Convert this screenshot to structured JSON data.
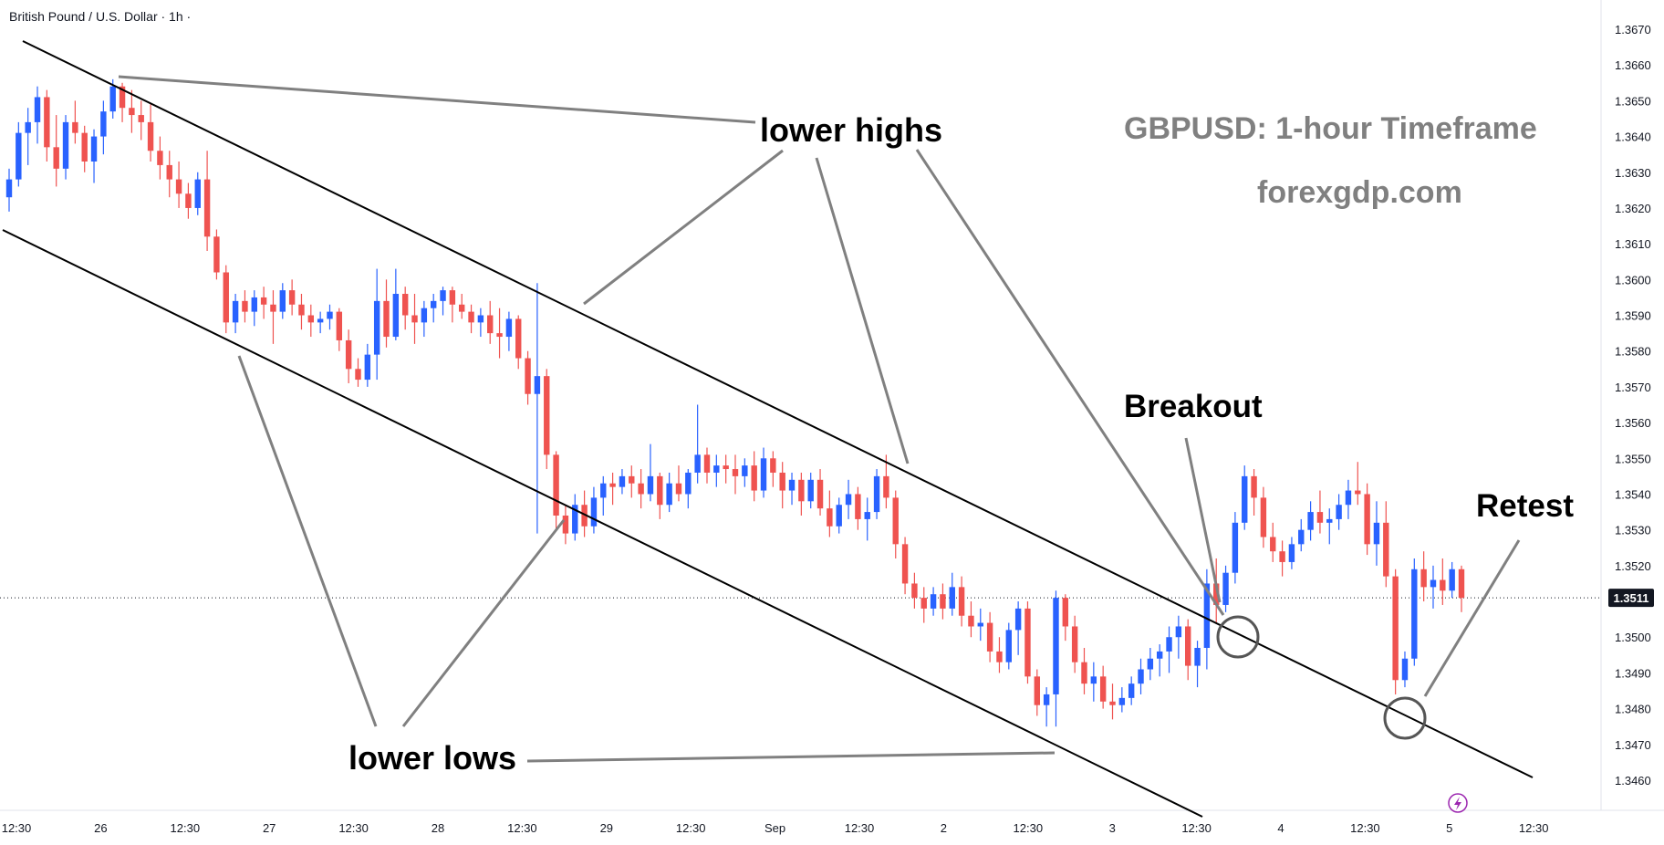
{
  "symbol_title": "British Pound / U.S. Dollar · 1h ·",
  "current_price_label": "1.3511",
  "colors": {
    "up": "#2962ff",
    "down": "#ef5350",
    "line": "#000000",
    "annotation_line": "#808080",
    "heading": "#808080",
    "price_tag": "#131722",
    "bolt": "#9c27b0"
  },
  "annotations": {
    "lower_highs": "lower highs",
    "lower_lows": "lower lows",
    "breakout": "Breakout",
    "retest": "Retest",
    "heading": "GBPUSD: 1-hour Timeframe",
    "site": "forexgdp.com"
  },
  "icons": {
    "event_marker": "lightning-icon"
  },
  "chart_data": {
    "type": "candlestick",
    "title": "British Pound / U.S. Dollar · 1h ·",
    "ylim": [
      1.3453,
      1.3676
    ],
    "y_ticks": [
      "1.3460",
      "1.3470",
      "1.3480",
      "1.3490",
      "1.3500",
      "1.3510",
      "1.3520",
      "1.3530",
      "1.3540",
      "1.3550",
      "1.3560",
      "1.3570",
      "1.3580",
      "1.3590",
      "1.3600",
      "1.3610",
      "1.3620",
      "1.3630",
      "1.3640",
      "1.3650",
      "1.3660",
      "1.3670"
    ],
    "x_ticks": [
      "12:30",
      "26",
      "12:30",
      "27",
      "12:30",
      "28",
      "12:30",
      "29",
      "12:30",
      "Sep",
      "12:30",
      "2",
      "12:30",
      "3",
      "12:30",
      "4",
      "12:30",
      "5",
      "12:30"
    ],
    "current_price": 1.3511,
    "candles_approx": [
      [
        1.3623,
        1.3631,
        1.3619,
        1.3628
      ],
      [
        1.3628,
        1.3644,
        1.3626,
        1.3641
      ],
      [
        1.3641,
        1.3648,
        1.3632,
        1.3644
      ],
      [
        1.3644,
        1.3654,
        1.3638,
        1.3651
      ],
      [
        1.3651,
        1.3653,
        1.3633,
        1.3637
      ],
      [
        1.3637,
        1.3646,
        1.3626,
        1.3631
      ],
      [
        1.3631,
        1.3646,
        1.3628,
        1.3644
      ],
      [
        1.3644,
        1.365,
        1.3638,
        1.3641
      ],
      [
        1.3641,
        1.3643,
        1.363,
        1.3633
      ],
      [
        1.3633,
        1.3642,
        1.3627,
        1.364
      ],
      [
        1.364,
        1.365,
        1.3635,
        1.3647
      ],
      [
        1.3647,
        1.3656,
        1.3645,
        1.3654
      ],
      [
        1.3654,
        1.3655,
        1.3644,
        1.3648
      ],
      [
        1.3648,
        1.3653,
        1.3641,
        1.3646
      ],
      [
        1.3646,
        1.365,
        1.3639,
        1.3644
      ],
      [
        1.3644,
        1.3649,
        1.3633,
        1.3636
      ],
      [
        1.3636,
        1.364,
        1.3628,
        1.3632
      ],
      [
        1.3632,
        1.3636,
        1.3623,
        1.3628
      ],
      [
        1.3628,
        1.3633,
        1.362,
        1.3624
      ],
      [
        1.3624,
        1.3627,
        1.3617,
        1.362
      ],
      [
        1.362,
        1.363,
        1.3618,
        1.3628
      ],
      [
        1.3628,
        1.3636,
        1.3608,
        1.3612
      ],
      [
        1.3612,
        1.3614,
        1.36,
        1.3602
      ],
      [
        1.3602,
        1.3604,
        1.3585,
        1.3588
      ],
      [
        1.3588,
        1.3596,
        1.3585,
        1.3594
      ],
      [
        1.3594,
        1.3597,
        1.3588,
        1.3591
      ],
      [
        1.3591,
        1.3597,
        1.3587,
        1.3595
      ],
      [
        1.3595,
        1.3598,
        1.3589,
        1.3593
      ],
      [
        1.3593,
        1.3597,
        1.3582,
        1.3591
      ],
      [
        1.3591,
        1.3599,
        1.3589,
        1.3597
      ],
      [
        1.3597,
        1.36,
        1.359,
        1.3593
      ],
      [
        1.3593,
        1.3596,
        1.3586,
        1.359
      ],
      [
        1.359,
        1.3593,
        1.3584,
        1.3588
      ],
      [
        1.3588,
        1.3591,
        1.3585,
        1.3589
      ],
      [
        1.3589,
        1.3593,
        1.3586,
        1.3591
      ],
      [
        1.3591,
        1.3592,
        1.358,
        1.3583
      ],
      [
        1.3583,
        1.3586,
        1.3571,
        1.3575
      ],
      [
        1.3575,
        1.3578,
        1.357,
        1.3572
      ],
      [
        1.3572,
        1.3582,
        1.357,
        1.3579
      ],
      [
        1.3579,
        1.3603,
        1.3572,
        1.3594
      ],
      [
        1.3594,
        1.36,
        1.3581,
        1.3584
      ],
      [
        1.3584,
        1.3603,
        1.3583,
        1.3596
      ],
      [
        1.3596,
        1.3598,
        1.3586,
        1.359
      ],
      [
        1.359,
        1.3596,
        1.3582,
        1.3588
      ],
      [
        1.3588,
        1.3594,
        1.3584,
        1.3592
      ],
      [
        1.3592,
        1.3596,
        1.3588,
        1.3594
      ],
      [
        1.3594,
        1.3598,
        1.359,
        1.3597
      ],
      [
        1.3597,
        1.3598,
        1.3588,
        1.3593
      ],
      [
        1.3593,
        1.3596,
        1.3589,
        1.3591
      ],
      [
        1.3591,
        1.3593,
        1.3585,
        1.3588
      ],
      [
        1.3588,
        1.3592,
        1.3584,
        1.359
      ],
      [
        1.359,
        1.3594,
        1.3582,
        1.3585
      ],
      [
        1.3585,
        1.3592,
        1.3578,
        1.3584
      ],
      [
        1.3584,
        1.3591,
        1.358,
        1.3589
      ],
      [
        1.3589,
        1.359,
        1.3575,
        1.3578
      ],
      [
        1.3578,
        1.358,
        1.3565,
        1.3568
      ],
      [
        1.3568,
        1.3599,
        1.3529,
        1.3573
      ],
      [
        1.3573,
        1.3575,
        1.3547,
        1.3551
      ],
      [
        1.3551,
        1.3552,
        1.353,
        1.3534
      ],
      [
        1.3534,
        1.3537,
        1.3526,
        1.3529
      ],
      [
        1.3529,
        1.354,
        1.3527,
        1.3537
      ],
      [
        1.3537,
        1.3541,
        1.3528,
        1.3531
      ],
      [
        1.3531,
        1.3542,
        1.3529,
        1.3539
      ],
      [
        1.3539,
        1.3545,
        1.3534,
        1.3543
      ],
      [
        1.3543,
        1.3546,
        1.3537,
        1.3542
      ],
      [
        1.3542,
        1.3547,
        1.354,
        1.3545
      ],
      [
        1.3545,
        1.3548,
        1.3539,
        1.3543
      ],
      [
        1.3543,
        1.3547,
        1.3536,
        1.354
      ],
      [
        1.354,
        1.3554,
        1.3538,
        1.3545
      ],
      [
        1.3545,
        1.3546,
        1.3533,
        1.3537
      ],
      [
        1.3537,
        1.3546,
        1.3535,
        1.3543
      ],
      [
        1.3543,
        1.3548,
        1.3538,
        1.354
      ],
      [
        1.354,
        1.3547,
        1.3536,
        1.3546
      ],
      [
        1.3546,
        1.3565,
        1.3543,
        1.3551
      ],
      [
        1.3551,
        1.3553,
        1.3543,
        1.3546
      ],
      [
        1.3546,
        1.3551,
        1.3542,
        1.3548
      ],
      [
        1.3548,
        1.3551,
        1.3543,
        1.3547
      ],
      [
        1.3547,
        1.3551,
        1.354,
        1.3545
      ],
      [
        1.3545,
        1.355,
        1.3542,
        1.3548
      ],
      [
        1.3548,
        1.3552,
        1.3538,
        1.3541
      ],
      [
        1.3541,
        1.3553,
        1.3539,
        1.355
      ],
      [
        1.355,
        1.3552,
        1.3542,
        1.3546
      ],
      [
        1.3546,
        1.3549,
        1.3536,
        1.3541
      ],
      [
        1.3541,
        1.3546,
        1.3537,
        1.3544
      ],
      [
        1.3544,
        1.3546,
        1.3534,
        1.3538
      ],
      [
        1.3538,
        1.3546,
        1.3536,
        1.3544
      ],
      [
        1.3544,
        1.3547,
        1.3534,
        1.3536
      ],
      [
        1.3536,
        1.3541,
        1.3528,
        1.3531
      ],
      [
        1.3531,
        1.3539,
        1.3529,
        1.3537
      ],
      [
        1.3537,
        1.3544,
        1.3533,
        1.354
      ],
      [
        1.354,
        1.3542,
        1.353,
        1.3533
      ],
      [
        1.3533,
        1.3539,
        1.3527,
        1.3535
      ],
      [
        1.3535,
        1.3547,
        1.3533,
        1.3545
      ],
      [
        1.3545,
        1.3551,
        1.3536,
        1.3539
      ],
      [
        1.3539,
        1.3541,
        1.3522,
        1.3526
      ],
      [
        1.3526,
        1.3528,
        1.3512,
        1.3515
      ],
      [
        1.3515,
        1.3518,
        1.3508,
        1.3511
      ],
      [
        1.3511,
        1.3514,
        1.3504,
        1.3508
      ],
      [
        1.3508,
        1.3514,
        1.3506,
        1.3512
      ],
      [
        1.3512,
        1.3515,
        1.3505,
        1.3508
      ],
      [
        1.3508,
        1.3518,
        1.3506,
        1.3514
      ],
      [
        1.3514,
        1.3517,
        1.3503,
        1.3506
      ],
      [
        1.3506,
        1.351,
        1.35,
        1.3503
      ],
      [
        1.3503,
        1.3508,
        1.3499,
        1.3504
      ],
      [
        1.3504,
        1.3507,
        1.3493,
        1.3496
      ],
      [
        1.3496,
        1.35,
        1.349,
        1.3493
      ],
      [
        1.3493,
        1.3504,
        1.3491,
        1.3502
      ],
      [
        1.3502,
        1.351,
        1.3495,
        1.3508
      ],
      [
        1.3508,
        1.351,
        1.3487,
        1.3489
      ],
      [
        1.3489,
        1.3491,
        1.3478,
        1.3481
      ],
      [
        1.3481,
        1.3486,
        1.3475,
        1.3484
      ],
      [
        1.3484,
        1.3513,
        1.3475,
        1.3511
      ],
      [
        1.3511,
        1.3512,
        1.3499,
        1.3503
      ],
      [
        1.3503,
        1.3506,
        1.349,
        1.3493
      ],
      [
        1.3493,
        1.3497,
        1.3484,
        1.3487
      ],
      [
        1.3487,
        1.3493,
        1.3482,
        1.3489
      ],
      [
        1.3489,
        1.3492,
        1.348,
        1.3482
      ],
      [
        1.3482,
        1.3487,
        1.3477,
        1.3481
      ],
      [
        1.3481,
        1.3486,
        1.3479,
        1.3483
      ],
      [
        1.3483,
        1.3489,
        1.3481,
        1.3487
      ],
      [
        1.3487,
        1.3494,
        1.3484,
        1.3491
      ],
      [
        1.3491,
        1.3497,
        1.3488,
        1.3494
      ],
      [
        1.3494,
        1.3498,
        1.3489,
        1.3496
      ],
      [
        1.3496,
        1.3503,
        1.349,
        1.35
      ],
      [
        1.35,
        1.3506,
        1.3494,
        1.3503
      ],
      [
        1.3503,
        1.3505,
        1.3488,
        1.3492
      ],
      [
        1.3492,
        1.3499,
        1.3486,
        1.3497
      ],
      [
        1.3497,
        1.3519,
        1.3491,
        1.3515
      ],
      [
        1.3515,
        1.3522,
        1.3504,
        1.3509
      ],
      [
        1.3509,
        1.352,
        1.3507,
        1.3518
      ],
      [
        1.3518,
        1.3535,
        1.3515,
        1.3532
      ],
      [
        1.3532,
        1.3548,
        1.353,
        1.3545
      ],
      [
        1.3545,
        1.3547,
        1.3534,
        1.3539
      ],
      [
        1.3539,
        1.3542,
        1.3525,
        1.3528
      ],
      [
        1.3528,
        1.3532,
        1.3521,
        1.3524
      ],
      [
        1.3524,
        1.3527,
        1.3517,
        1.3521
      ],
      [
        1.3521,
        1.3528,
        1.3519,
        1.3526
      ],
      [
        1.3526,
        1.3533,
        1.3524,
        1.353
      ],
      [
        1.353,
        1.3538,
        1.3527,
        1.3535
      ],
      [
        1.3535,
        1.3541,
        1.3529,
        1.3532
      ],
      [
        1.3532,
        1.3536,
        1.3526,
        1.3533
      ],
      [
        1.3533,
        1.354,
        1.353,
        1.3537
      ],
      [
        1.3537,
        1.3544,
        1.3533,
        1.3541
      ],
      [
        1.3541,
        1.3549,
        1.3537,
        1.354
      ],
      [
        1.354,
        1.3543,
        1.3523,
        1.3526
      ],
      [
        1.3526,
        1.3538,
        1.352,
        1.3532
      ],
      [
        1.3532,
        1.3538,
        1.3514,
        1.3517
      ],
      [
        1.3517,
        1.3519,
        1.3484,
        1.3488
      ],
      [
        1.3488,
        1.3496,
        1.3486,
        1.3494
      ],
      [
        1.3494,
        1.3522,
        1.3492,
        1.3519
      ],
      [
        1.3519,
        1.3524,
        1.351,
        1.3514
      ],
      [
        1.3514,
        1.352,
        1.3508,
        1.3516
      ],
      [
        1.3516,
        1.3522,
        1.3509,
        1.3513
      ],
      [
        1.3513,
        1.3521,
        1.3511,
        1.3519
      ],
      [
        1.3519,
        1.352,
        1.3507,
        1.3511
      ]
    ]
  }
}
